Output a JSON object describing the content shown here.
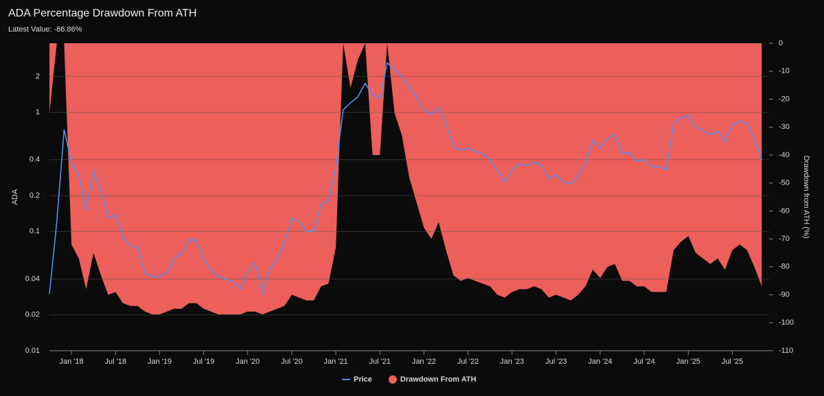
{
  "chart_data": {
    "type": "line-area",
    "title": "ADA Percentage Drawdown From ATH",
    "subtitle": "Latest Value: -86.86%",
    "y_label": "ADA",
    "y2_label": "Drawdown from ATH (%)",
    "x": [
      "2017-10",
      "2017-11",
      "2017-12",
      "2018-01",
      "2018-02",
      "2018-03",
      "2018-04",
      "2018-05",
      "2018-06",
      "2018-07",
      "2018-08",
      "2018-09",
      "2018-10",
      "2018-11",
      "2018-12",
      "2019-01",
      "2019-02",
      "2019-03",
      "2019-04",
      "2019-05",
      "2019-06",
      "2019-07",
      "2019-08",
      "2019-09",
      "2019-10",
      "2019-11",
      "2019-12",
      "2020-01",
      "2020-02",
      "2020-03",
      "2020-04",
      "2020-05",
      "2020-06",
      "2020-07",
      "2020-08",
      "2020-09",
      "2020-10",
      "2020-11",
      "2020-12",
      "2021-01",
      "2021-02",
      "2021-03",
      "2021-04",
      "2021-05",
      "2021-06",
      "2021-07",
      "2021-08",
      "2021-09",
      "2021-10",
      "2021-11",
      "2021-12",
      "2022-01",
      "2022-02",
      "2022-03",
      "2022-04",
      "2022-05",
      "2022-06",
      "2022-07",
      "2022-08",
      "2022-09",
      "2022-10",
      "2022-11",
      "2022-12",
      "2023-01",
      "2023-02",
      "2023-03",
      "2023-04",
      "2023-05",
      "2023-06",
      "2023-07",
      "2023-08",
      "2023-09",
      "2023-10",
      "2023-11",
      "2023-12",
      "2024-01",
      "2024-02",
      "2024-03",
      "2024-04",
      "2024-05",
      "2024-06",
      "2024-07",
      "2024-08",
      "2024-09",
      "2024-10",
      "2024-11",
      "2024-12",
      "2025-01",
      "2025-02",
      "2025-03",
      "2025-04",
      "2025-05",
      "2025-06",
      "2025-07",
      "2025-08",
      "2025-09",
      "2025-10",
      "2025-11"
    ],
    "series": [
      {
        "name": "Price",
        "color": "#5b8def",
        "axis": "y",
        "values": [
          0.03,
          0.12,
          0.72,
          0.38,
          0.3,
          0.15,
          0.32,
          0.22,
          0.13,
          0.14,
          0.09,
          0.075,
          0.075,
          0.045,
          0.042,
          0.042,
          0.045,
          0.06,
          0.065,
          0.085,
          0.085,
          0.058,
          0.048,
          0.042,
          0.04,
          0.038,
          0.033,
          0.045,
          0.055,
          0.03,
          0.048,
          0.06,
          0.08,
          0.13,
          0.12,
          0.1,
          0.1,
          0.17,
          0.18,
          0.35,
          1.05,
          1.2,
          1.35,
          1.75,
          1.4,
          1.3,
          2.6,
          2.3,
          2.0,
          1.6,
          1.35,
          1.05,
          0.95,
          1.1,
          0.8,
          0.52,
          0.48,
          0.5,
          0.47,
          0.45,
          0.4,
          0.32,
          0.26,
          0.33,
          0.37,
          0.36,
          0.38,
          0.36,
          0.28,
          0.3,
          0.26,
          0.25,
          0.29,
          0.38,
          0.58,
          0.5,
          0.6,
          0.65,
          0.45,
          0.46,
          0.39,
          0.4,
          0.35,
          0.35,
          0.33,
          0.8,
          0.9,
          0.95,
          0.75,
          0.7,
          0.65,
          0.7,
          0.56,
          0.78,
          0.85,
          0.8,
          0.6,
          0.4
        ]
      },
      {
        "name": "Drawdown From ATH",
        "color": "#ec5f5a",
        "axis": "y2",
        "values": [
          -25,
          0,
          0,
          -72,
          -77,
          -88,
          -75,
          -83,
          -90,
          -89,
          -93,
          -94,
          -94,
          -96,
          -97,
          -97,
          -96,
          -95,
          -95,
          -93,
          -93,
          -95,
          -96,
          -97,
          -97,
          -97,
          -97,
          -96,
          -96,
          -97,
          -96,
          -95,
          -94,
          -90,
          -91,
          -92,
          -92,
          -87,
          -86,
          -73,
          0,
          -16,
          -6,
          0,
          -40,
          -40,
          0,
          -25,
          -33,
          -48,
          -57,
          -66,
          -70,
          -64,
          -74,
          -83,
          -85,
          -84,
          -85,
          -86,
          -87,
          -90,
          -91,
          -89,
          -88,
          -88,
          -87,
          -88,
          -91,
          -90,
          -91,
          -92,
          -90,
          -87,
          -81,
          -84,
          -80,
          -79,
          -85,
          -85,
          -87,
          -87,
          -89,
          -89,
          -89,
          -74,
          -71,
          -69,
          -75,
          -77,
          -79,
          -77,
          -81,
          -74,
          -72,
          -74,
          -80,
          -87
        ]
      }
    ],
    "xlim": [
      "2017-10",
      "2025-12"
    ],
    "xticks": [
      {
        "value": "2018-01",
        "label": "Jan '18"
      },
      {
        "value": "2018-07",
        "label": "Jul '18"
      },
      {
        "value": "2019-01",
        "label": "Jan '19"
      },
      {
        "value": "2019-07",
        "label": "Jul '19"
      },
      {
        "value": "2020-01",
        "label": "Jan '20"
      },
      {
        "value": "2020-07",
        "label": "Jul '20"
      },
      {
        "value": "2021-01",
        "label": "Jan '21"
      },
      {
        "value": "2021-07",
        "label": "Jul '21"
      },
      {
        "value": "2022-01",
        "label": "Jan '22"
      },
      {
        "value": "2022-07",
        "label": "Jul '22"
      },
      {
        "value": "2023-01",
        "label": "Jan '23"
      },
      {
        "value": "2023-07",
        "label": "Jul '23"
      },
      {
        "value": "2024-01",
        "label": "Jan '24"
      },
      {
        "value": "2024-07",
        "label": "Jul '24"
      },
      {
        "value": "2025-01",
        "label": "Jan '25"
      },
      {
        "value": "2025-07",
        "label": "Jul '25"
      }
    ],
    "ylim": [
      0.01,
      3.8
    ],
    "y_scale": "log",
    "yticks": [
      0.01,
      0.02,
      0.04,
      0.1,
      0.2,
      0.4,
      1,
      2
    ],
    "y2lim": [
      -110,
      0
    ],
    "y2ticks": [
      -110,
      -100,
      -90,
      -80,
      -70,
      -60,
      -50,
      -40,
      -30,
      -20,
      -10,
      0
    ],
    "grid": true,
    "legend": "bottom"
  }
}
